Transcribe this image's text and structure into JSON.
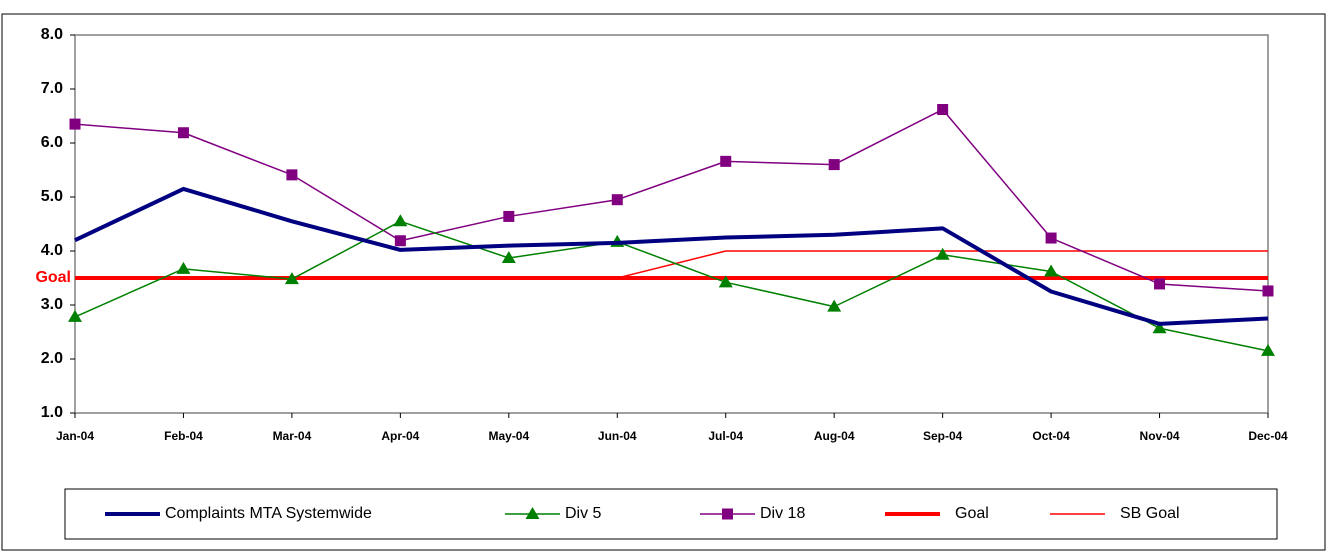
{
  "chart_data": {
    "type": "line",
    "categories": [
      "Jan-04",
      "Feb-04",
      "Mar-04",
      "Apr-04",
      "May-04",
      "Jun-04",
      "Jul-04",
      "Aug-04",
      "Sep-04",
      "Oct-04",
      "Nov-04",
      "Dec-04"
    ],
    "series": [
      {
        "name": "Complaints MTA Systemwide",
        "color": "#000080",
        "width": 4,
        "marker": "none",
        "values": [
          4.2,
          5.15,
          4.55,
          4.02,
          4.1,
          4.15,
          4.25,
          4.3,
          4.42,
          3.25,
          2.65,
          2.75
        ]
      },
      {
        "name": "Div 5",
        "color": "#008000",
        "width": 1.5,
        "marker": "triangle",
        "values": [
          2.78,
          3.67,
          3.48,
          4.55,
          3.87,
          4.17,
          3.42,
          2.97,
          3.93,
          3.62,
          2.57,
          2.15
        ]
      },
      {
        "name": "Div 18",
        "color": "#800080",
        "width": 1.5,
        "marker": "square",
        "values": [
          6.35,
          6.19,
          5.41,
          4.19,
          4.64,
          4.95,
          5.66,
          5.6,
          6.62,
          4.24,
          3.39,
          3.26
        ]
      },
      {
        "name": "Goal",
        "color": "#ff0000",
        "width": 4,
        "marker": "none",
        "values": [
          3.5,
          3.5,
          3.5,
          3.5,
          3.5,
          3.5,
          3.5,
          3.5,
          3.5,
          3.5,
          3.5,
          3.5
        ]
      },
      {
        "name": "SB Goal",
        "color": "#ff0000",
        "width": 1.5,
        "marker": "none",
        "values": [
          3.5,
          3.5,
          3.5,
          3.5,
          3.5,
          3.5,
          4.0,
          4.0,
          4.0,
          4.0,
          4.0,
          4.0
        ]
      }
    ],
    "ylim": [
      1,
      8
    ],
    "yticks": [
      {
        "value": 1,
        "label": "1.0"
      },
      {
        "value": 2,
        "label": "2.0"
      },
      {
        "value": 3,
        "label": "3.0"
      },
      {
        "value": 4,
        "label": "4.0"
      },
      {
        "value": 5,
        "label": "5.0"
      },
      {
        "value": 6,
        "label": "6.0"
      },
      {
        "value": 7,
        "label": "7.0"
      },
      {
        "value": 8,
        "label": "8.0"
      }
    ],
    "annotation": {
      "text": "Goal",
      "value": 3.5,
      "color": "#ff0000"
    },
    "grid": false,
    "legend": "bottom"
  }
}
